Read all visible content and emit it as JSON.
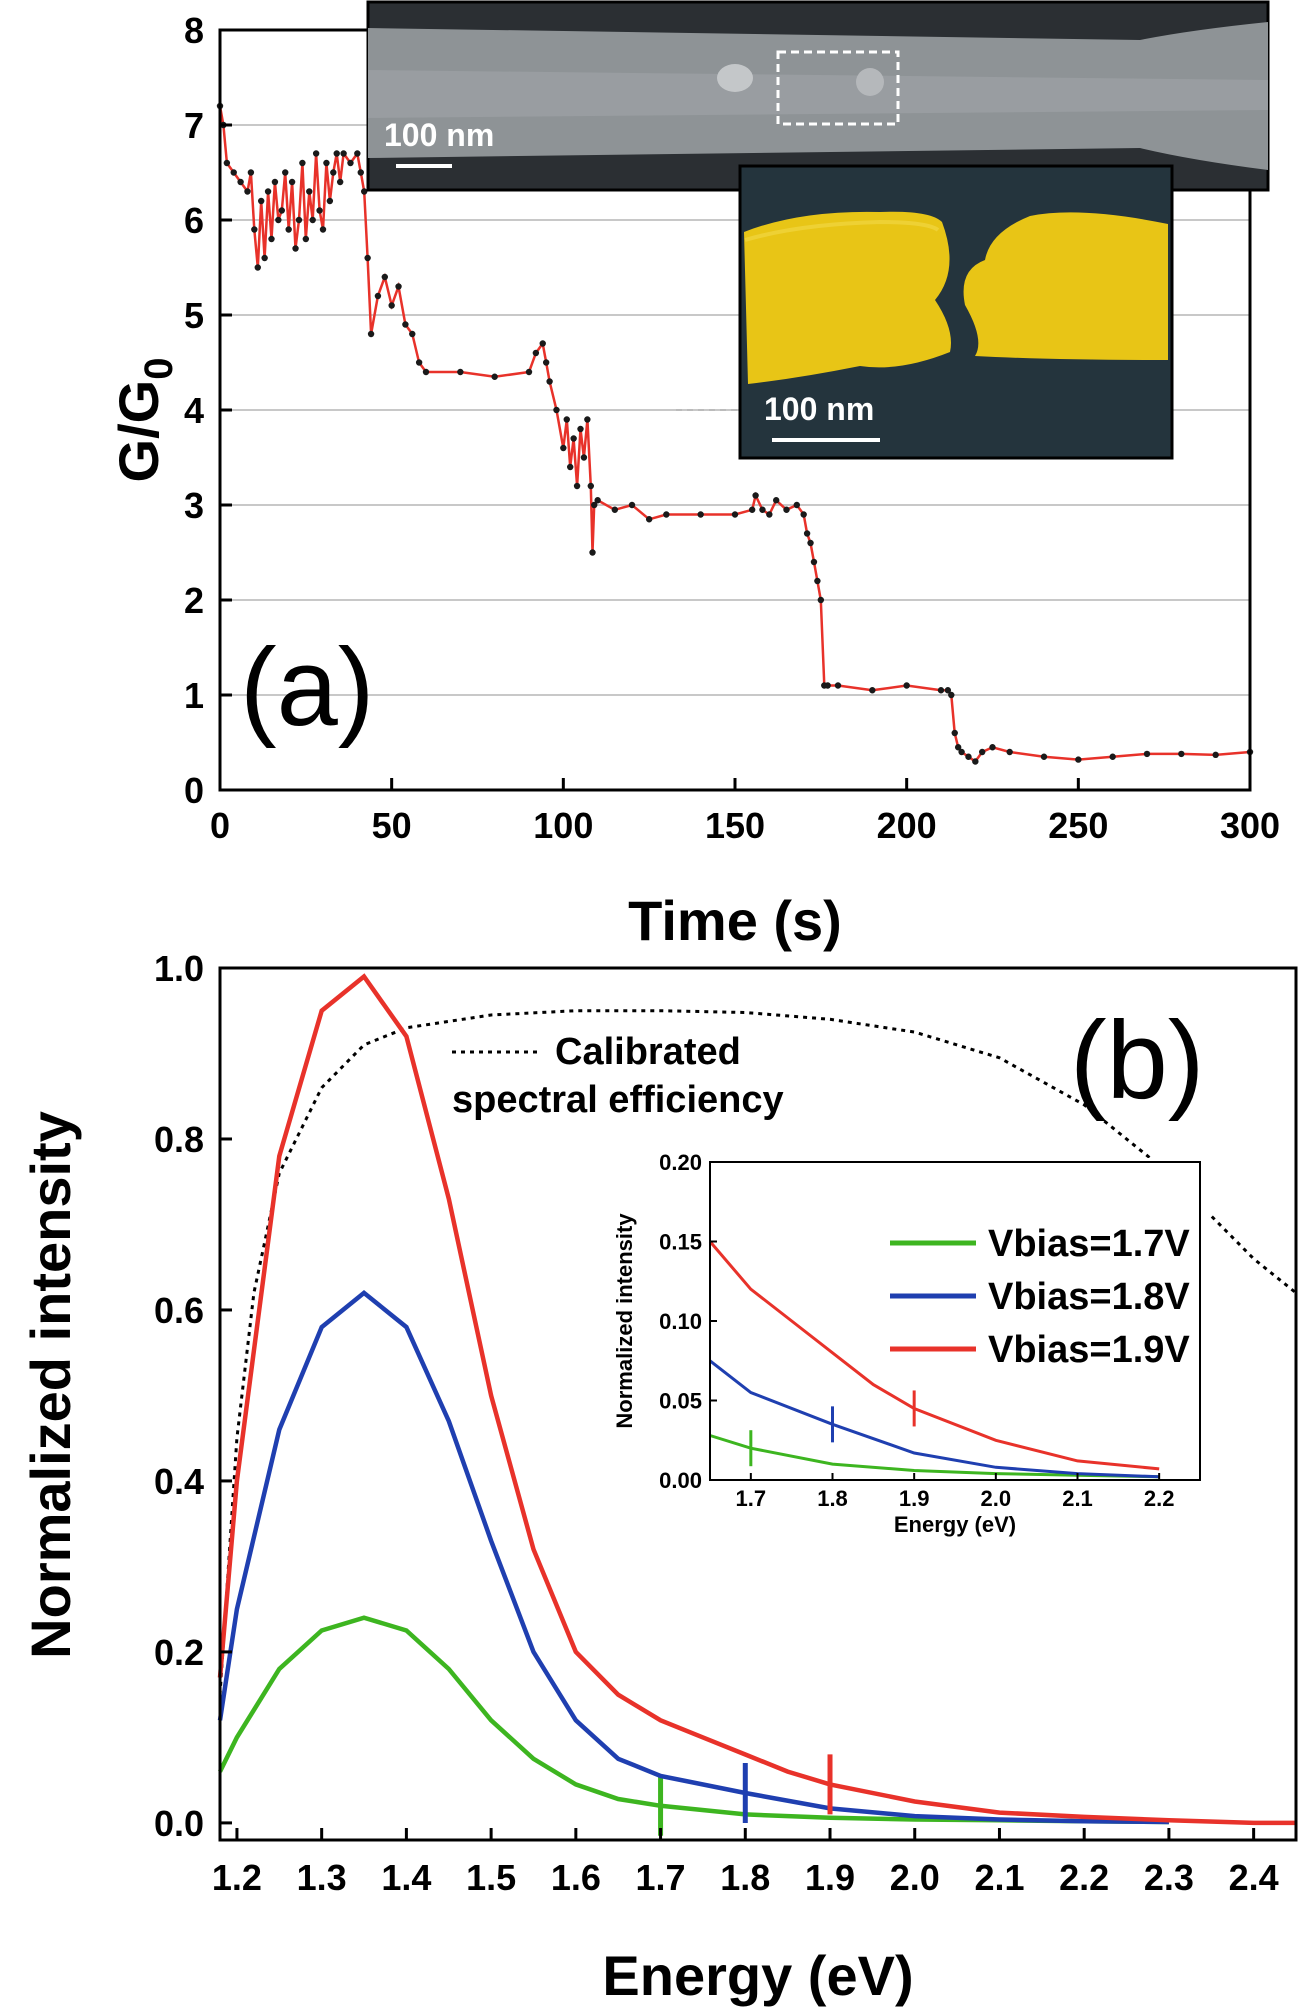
{
  "chart_data": [
    {
      "type": "line",
      "panel_label": "(a)",
      "xlabel": "Time (s)",
      "ylabel_main": "G/G",
      "ylabel_sub": "0",
      "xlim": [
        0,
        300
      ],
      "ylim": [
        0,
        8
      ],
      "xticks": [
        0,
        50,
        100,
        150,
        200,
        250,
        300
      ],
      "yticks": [
        0,
        1,
        2,
        3,
        4,
        5,
        6,
        7,
        8
      ],
      "grid": "horizontal",
      "colors": {
        "line": "#e8322a",
        "markers": "#1a1a1a"
      },
      "series": [
        {
          "x": [
            0,
            1,
            2,
            4,
            6,
            8,
            9,
            10,
            11,
            12,
            13,
            14,
            15,
            16,
            17,
            18,
            19,
            20,
            21,
            22,
            23,
            24,
            25,
            26,
            27,
            28,
            29,
            30,
            31,
            32,
            33,
            34,
            35,
            36,
            38,
            40,
            41,
            42,
            43,
            44,
            46,
            48,
            50,
            52,
            54,
            56,
            58,
            60,
            70,
            80,
            90,
            92,
            94,
            95,
            96,
            98,
            100,
            101,
            102,
            103,
            104,
            105,
            106,
            107,
            108,
            108.5,
            109,
            110,
            115,
            120,
            125,
            130,
            140,
            150,
            155,
            156,
            158,
            160,
            162,
            165,
            168,
            170,
            171,
            172,
            173,
            174,
            175,
            176,
            177,
            180,
            190,
            200,
            210,
            212,
            213,
            214,
            215,
            216,
            218,
            220,
            222,
            225,
            230,
            240,
            250,
            260,
            270,
            280,
            290,
            300
          ],
          "y": [
            7.2,
            7.0,
            6.6,
            6.5,
            6.4,
            6.3,
            6.5,
            5.9,
            5.5,
            6.2,
            5.6,
            6.3,
            5.8,
            6.4,
            6.0,
            6.1,
            6.5,
            5.9,
            6.4,
            5.7,
            6.0,
            6.6,
            5.8,
            6.3,
            6.0,
            6.7,
            6.1,
            5.9,
            6.6,
            6.2,
            6.5,
            6.7,
            6.4,
            6.7,
            6.6,
            6.7,
            6.5,
            6.3,
            5.6,
            4.8,
            5.2,
            5.4,
            5.1,
            5.3,
            4.9,
            4.8,
            4.5,
            4.4,
            4.4,
            4.35,
            4.4,
            4.6,
            4.7,
            4.5,
            4.3,
            4.0,
            3.6,
            3.9,
            3.4,
            3.7,
            3.2,
            3.8,
            3.5,
            3.9,
            3.2,
            2.5,
            3.0,
            3.05,
            2.95,
            3.0,
            2.85,
            2.9,
            2.9,
            2.9,
            2.95,
            3.1,
            2.95,
            2.9,
            3.05,
            2.95,
            3.0,
            2.9,
            2.7,
            2.6,
            2.4,
            2.2,
            2.0,
            1.1,
            1.1,
            1.1,
            1.05,
            1.1,
            1.05,
            1.05,
            1.0,
            0.6,
            0.45,
            0.4,
            0.35,
            0.3,
            0.4,
            0.45,
            0.4,
            0.35,
            0.32,
            0.35,
            0.38,
            0.38,
            0.37,
            0.4
          ]
        }
      ],
      "annotations": [
        "100 nm",
        "100 nm"
      ]
    },
    {
      "type": "line",
      "panel_label": "(b)",
      "xlabel": "Energy (eV)",
      "ylabel": "Normalized intensity",
      "xlim": [
        1.18,
        2.45
      ],
      "ylim": [
        -0.02,
        1.0
      ],
      "xticks": [
        1.2,
        1.3,
        1.4,
        1.5,
        1.6,
        1.7,
        1.8,
        1.9,
        2.0,
        2.1,
        2.2,
        2.3,
        2.4
      ],
      "yticks": [
        0.0,
        0.2,
        0.4,
        0.6,
        0.8,
        1.0
      ],
      "legend": "inset-right",
      "calibration_label_1": "Calibrated",
      "calibration_label_2": "spectral efficiency",
      "calibration_curve": {
        "x": [
          1.18,
          1.2,
          1.22,
          1.25,
          1.3,
          1.35,
          1.4,
          1.5,
          1.6,
          1.7,
          1.8,
          1.9,
          2.0,
          2.1,
          2.2,
          2.3,
          2.4,
          2.45
        ],
        "y": [
          0.15,
          0.45,
          0.62,
          0.76,
          0.86,
          0.91,
          0.93,
          0.945,
          0.95,
          0.95,
          0.948,
          0.94,
          0.925,
          0.895,
          0.84,
          0.76,
          0.66,
          0.62
        ]
      },
      "series": [
        {
          "name": "Vbias=1.7V",
          "color": "#3db520",
          "marker_x": 1.7,
          "x": [
            1.18,
            1.2,
            1.25,
            1.3,
            1.35,
            1.4,
            1.45,
            1.5,
            1.55,
            1.6,
            1.65,
            1.7,
            1.8,
            1.9,
            2.0,
            2.1,
            2.2,
            2.3
          ],
          "y": [
            0.06,
            0.1,
            0.18,
            0.225,
            0.24,
            0.225,
            0.18,
            0.12,
            0.075,
            0.045,
            0.028,
            0.02,
            0.01,
            0.006,
            0.004,
            0.003,
            0.002,
            0.001
          ]
        },
        {
          "name": "Vbias=1.8V",
          "color": "#1f3fb0",
          "marker_x": 1.8,
          "x": [
            1.18,
            1.2,
            1.25,
            1.3,
            1.35,
            1.4,
            1.45,
            1.5,
            1.55,
            1.6,
            1.65,
            1.7,
            1.8,
            1.9,
            2.0,
            2.1,
            2.2,
            2.3
          ],
          "y": [
            0.12,
            0.25,
            0.46,
            0.58,
            0.62,
            0.58,
            0.47,
            0.33,
            0.2,
            0.12,
            0.075,
            0.055,
            0.035,
            0.017,
            0.008,
            0.004,
            0.002,
            0.001
          ]
        },
        {
          "name": "Vbias=1.9V",
          "color": "#e8322a",
          "marker_x": 1.9,
          "x": [
            1.18,
            1.2,
            1.25,
            1.3,
            1.35,
            1.4,
            1.45,
            1.5,
            1.55,
            1.6,
            1.65,
            1.7,
            1.75,
            1.8,
            1.85,
            1.9,
            2.0,
            2.1,
            2.2,
            2.3,
            2.4,
            2.45
          ],
          "y": [
            0.17,
            0.4,
            0.78,
            0.95,
            0.99,
            0.92,
            0.73,
            0.5,
            0.32,
            0.2,
            0.15,
            0.12,
            0.1,
            0.08,
            0.06,
            0.045,
            0.025,
            0.012,
            0.007,
            0.003,
            0.0,
            0.0
          ]
        }
      ],
      "inset": {
        "xlabel": "Energy (eV)",
        "ylabel": "Normalized intensity",
        "xlim": [
          1.65,
          2.25
        ],
        "ylim": [
          0.0,
          0.2
        ],
        "xticks": [
          1.7,
          1.8,
          1.9,
          2.0,
          2.1,
          2.2
        ],
        "yticks": [
          "0.00",
          "0.05",
          "0.10",
          "0.15",
          "0.20"
        ]
      }
    }
  ]
}
